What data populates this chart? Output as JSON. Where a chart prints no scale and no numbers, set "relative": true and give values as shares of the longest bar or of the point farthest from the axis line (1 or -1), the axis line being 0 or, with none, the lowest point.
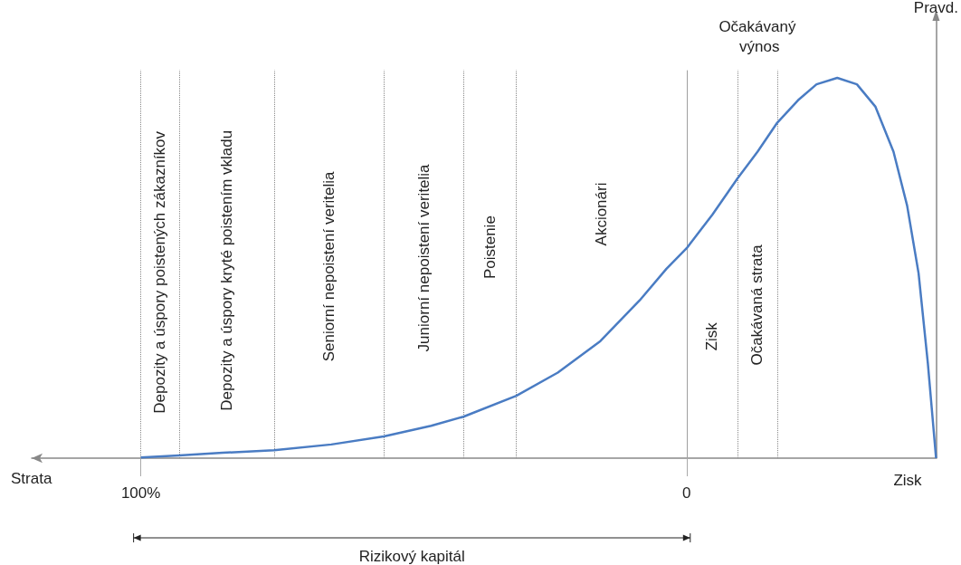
{
  "chart_data": {
    "type": "line",
    "relative": true,
    "xlabel": "Strata",
    "ylabel": "Pravd.",
    "x": [
      100,
      93.0,
      85.0,
      75.6,
      65.1,
      55.5,
      46.8,
      40.9,
      31.2,
      23.6,
      15.8,
      8.6,
      3.7,
      0,
      -4.7,
      -9.3,
      -13.0,
      -16.6,
      -20.4,
      -23.8,
      -27.6,
      -31.2,
      -34.6,
      -37.9,
      -40.4,
      -42.5,
      -44.2,
      -45.7
    ],
    "values": [
      0.002,
      0.007,
      0.014,
      0.021,
      0.036,
      0.057,
      0.085,
      0.109,
      0.164,
      0.225,
      0.308,
      0.415,
      0.498,
      0.552,
      0.64,
      0.735,
      0.806,
      0.882,
      0.941,
      0.983,
      1.0,
      0.983,
      0.924,
      0.806,
      0.664,
      0.486,
      0.249,
      0
    ],
    "color": "#4a7cc3",
    "marker": "none",
    "line_style": "solid",
    "grid": false,
    "xlim": [
      120,
      -45.7
    ],
    "xticks": [
      {
        "value": 100,
        "label": "100%"
      },
      0
    ],
    "ref_lines": [
      {
        "axis": "x",
        "value": 100,
        "line_style": "dotted",
        "color": "#888888"
      },
      {
        "axis": "x",
        "value": 93.0,
        "line_style": "dotted",
        "color": "#888888"
      },
      {
        "axis": "x",
        "value": 75.6,
        "line_style": "dotted",
        "color": "#888888"
      },
      {
        "axis": "x",
        "value": 55.5,
        "line_style": "dotted",
        "color": "#888888"
      },
      {
        "axis": "x",
        "value": 40.9,
        "line_style": "dotted",
        "color": "#888888"
      },
      {
        "axis": "x",
        "value": 31.2,
        "line_style": "dotted",
        "color": "#888888"
      },
      {
        "axis": "x",
        "value": 0,
        "line_style": "solid",
        "color": "#a0a0a0"
      },
      {
        "axis": "x",
        "value": -9.3,
        "line_style": "dotted",
        "color": "#888888"
      },
      {
        "axis": "x",
        "value": -16.6,
        "line_style": "dotted",
        "color": "#888888"
      }
    ],
    "annotations": [
      "Očakávaný výnos",
      "Zisk",
      "Rizikový kapitál",
      "Depozity a úspory poistených zákazníkov",
      "Depozity a úspory kryté poistením vkladu",
      "Seniorní nepoistení veritelia",
      "Juniorní nepoistení veritelia",
      "Poistenie",
      "Akcionári",
      "Zisk",
      "Očakávaná strata"
    ]
  }
}
